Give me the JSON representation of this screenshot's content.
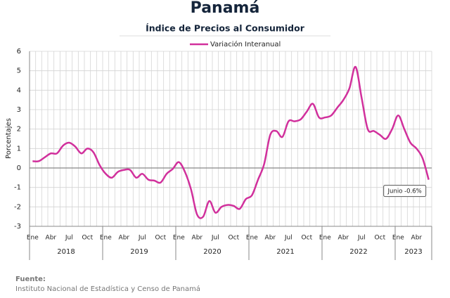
{
  "chart_data": {
    "type": "line",
    "title": "Panamá",
    "subtitle": "Índice de Precios al Consumidor",
    "y_label": "Porcentajes",
    "categories": [
      "Ene",
      null,
      null,
      "Abr",
      null,
      null,
      "Jul",
      null,
      null,
      "Oct",
      null,
      null,
      "Ene",
      null,
      null,
      "Abr",
      null,
      null,
      "Jul",
      null,
      null,
      "Oct",
      null,
      null,
      "Ene",
      null,
      null,
      "Abr",
      null,
      null,
      "Jul",
      null,
      null,
      "Oct",
      null,
      null,
      "Ene",
      null,
      null,
      "Abr",
      null,
      null,
      "Jul",
      null,
      null,
      "Oct",
      null,
      null,
      "Ene",
      null,
      null,
      "Abr",
      null,
      null,
      "Jul",
      null,
      null,
      "Oct",
      null,
      null,
      "Ene",
      null,
      null,
      "Abr",
      null,
      null
    ],
    "years": [
      "2018",
      "2019",
      "2020",
      "2021",
      "2022",
      "2023"
    ],
    "series": [
      {
        "name": "Variación Interanual",
        "color": "#d1309c",
        "values": [
          0.35,
          0.35,
          0.55,
          0.75,
          0.75,
          1.15,
          1.3,
          1.1,
          0.75,
          1.0,
          0.8,
          0.15,
          -0.3,
          -0.5,
          -0.2,
          -0.1,
          -0.1,
          -0.5,
          -0.3,
          -0.6,
          -0.65,
          -0.75,
          -0.3,
          -0.05,
          0.3,
          -0.2,
          -1.1,
          -2.4,
          -2.5,
          -1.7,
          -2.3,
          -2.0,
          -1.9,
          -1.95,
          -2.1,
          -1.6,
          -1.4,
          -0.6,
          0.2,
          1.7,
          1.9,
          1.6,
          2.4,
          2.4,
          2.5,
          2.9,
          3.3,
          2.6,
          2.6,
          2.7,
          3.1,
          3.5,
          4.1,
          5.2,
          3.6,
          2.0,
          1.9,
          1.7,
          1.5,
          2.0,
          2.7,
          2.0,
          1.3,
          1.0,
          0.5,
          -0.6
        ]
      }
    ],
    "annotation": "Junio -0.6%",
    "ylim": [
      -3,
      6
    ],
    "yticks": [
      -3,
      -2,
      -1,
      0,
      1,
      2,
      3,
      4,
      5,
      6
    ],
    "grid": true,
    "source_title": "Fuente:",
    "source": "Instituto Nacional de Estadística y Censo de Panamá"
  }
}
